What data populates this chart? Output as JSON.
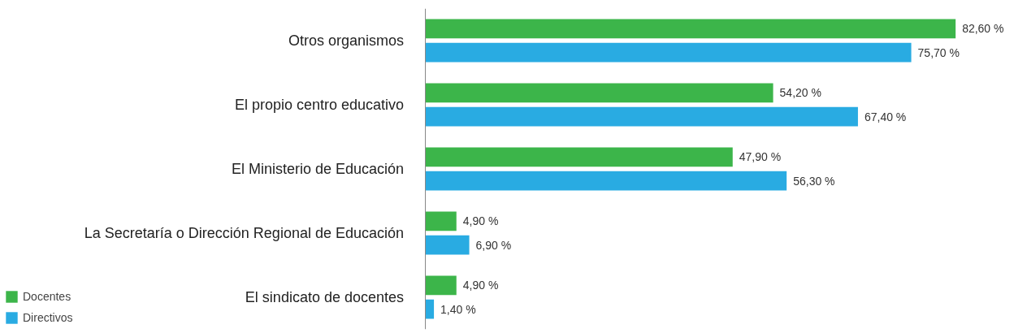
{
  "chart_data": {
    "type": "bar",
    "orientation": "horizontal",
    "categories": [
      "Otros organismos",
      "El propio centro educativo",
      "El Ministerio de Educación",
      "La Secretaría o Dirección Regional de Educación",
      "El sindicato de docentes"
    ],
    "series": [
      {
        "name": "Docentes",
        "color": "#3cb54a",
        "values": [
          82.6,
          54.2,
          47.9,
          4.9,
          4.9
        ],
        "value_labels": [
          "82,60 %",
          "54,20 %",
          "47,90 %",
          "4,90 %",
          "4,90 %"
        ]
      },
      {
        "name": "Directivos",
        "color": "#29abe2",
        "values": [
          75.7,
          67.4,
          56.3,
          6.9,
          1.4
        ],
        "value_labels": [
          "75,70 %",
          "67,40 %",
          "56,30 %",
          "6,90 %",
          "1,40 %"
        ]
      }
    ],
    "tick_labels": "y",
    "grid": false,
    "legend": "bottom left"
  }
}
